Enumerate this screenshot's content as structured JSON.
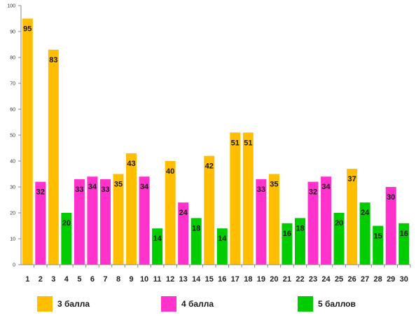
{
  "chart_data": {
    "type": "bar",
    "categories": [
      "1",
      "2",
      "3",
      "4",
      "5",
      "6",
      "7",
      "8",
      "9",
      "10",
      "11",
      "12",
      "13",
      "14",
      "15",
      "16",
      "17",
      "18",
      "19",
      "20",
      "21",
      "22",
      "23",
      "24",
      "25",
      "26",
      "27",
      "28",
      "29",
      "30"
    ],
    "values": [
      95,
      32,
      83,
      20,
      33,
      34,
      33,
      35,
      43,
      34,
      14,
      40,
      24,
      18,
      42,
      14,
      51,
      51,
      33,
      35,
      16,
      18,
      32,
      34,
      20,
      37,
      24,
      15,
      30,
      16
    ],
    "groups": [
      "g3",
      "g4",
      "g3",
      "g5",
      "g4",
      "g4",
      "g4",
      "g3",
      "g3",
      "g4",
      "g5",
      "g3",
      "g4",
      "g5",
      "g3",
      "g5",
      "g3",
      "g3",
      "g4",
      "g3",
      "g5",
      "g5",
      "g4",
      "g4",
      "g5",
      "g3",
      "g5",
      "g5",
      "g4",
      "g5"
    ],
    "legend": [
      {
        "key": "g3",
        "label": "3 балла",
        "color": "#FFBF00"
      },
      {
        "key": "g4",
        "label": "4 балла",
        "color": "#FF33CC"
      },
      {
        "key": "g5",
        "label": "5 баллов",
        "color": "#00CC00"
      }
    ],
    "yticks": [
      0,
      10,
      20,
      30,
      40,
      50,
      60,
      70,
      80,
      90,
      100
    ],
    "ylim": [
      0,
      100
    ],
    "legend_position": "bottom",
    "grid": false
  }
}
